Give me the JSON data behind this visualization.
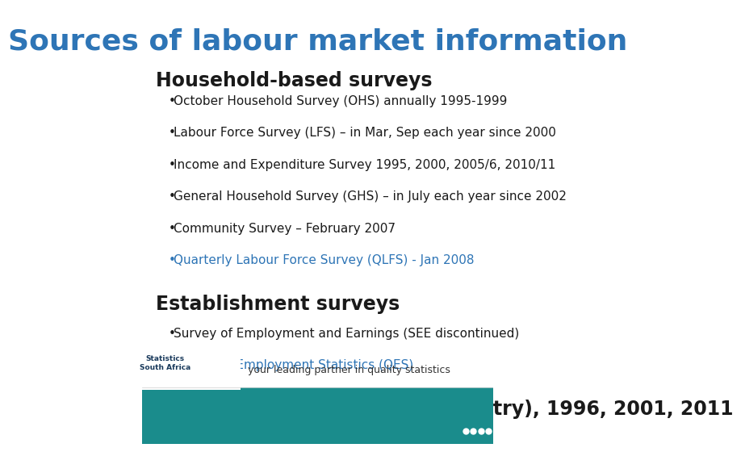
{
  "title": "Sources of labour market information",
  "title_color": "#2E75B6",
  "title_fontsize": 26,
  "bg_color": "#FFFFFF",
  "footer_bg_color": "#1A8C8C",
  "footer_text": "your leading partner in quality statistics",
  "footer_text_color": "#333333",
  "section1_header": "Household-based surveys",
  "section1_color": "#1A1A1A",
  "section1_fontsize": 17,
  "section2_header": "Establishment surveys",
  "section2_color": "#1A1A1A",
  "section2_fontsize": 17,
  "section3_header": "Population Census (whole country), 1996, 2001, 2011",
  "section3_color": "#1A1A1A",
  "section3_fontsize": 17,
  "bullets_section1": [
    {
      "text": "October Household Survey (OHS) annually 1995-1999",
      "color": "#1A1A1A"
    },
    {
      "text": "Labour Force Survey (LFS) – in Mar, Sep each year since 2000",
      "color": "#1A1A1A"
    },
    {
      "text": "Income and Expenditure Survey 1995, 2000, 2005/6, 2010/11",
      "color": "#1A1A1A"
    },
    {
      "text": "General Household Survey (GHS) – in July each year since 2002",
      "color": "#1A1A1A"
    },
    {
      "text": "Community Survey – February 2007",
      "color": "#1A1A1A"
    },
    {
      "text": "Quarterly Labour Force Survey (QLFS) - Jan 2008",
      "color": "#2E75B6"
    }
  ],
  "bullets_section2": [
    {
      "text": "Survey of Employment and Earnings (SEE discontinued)",
      "color": "#1A1A1A"
    },
    {
      "text": "Quarterly Employment Statistics (QES)",
      "color": "#2E75B6"
    }
  ],
  "bullet_fontsize": 11,
  "dots_color": "#FFFFFF",
  "logo_bg": "#FFFFFF",
  "footer_line_color": "#cccccc",
  "num_dots": 4
}
